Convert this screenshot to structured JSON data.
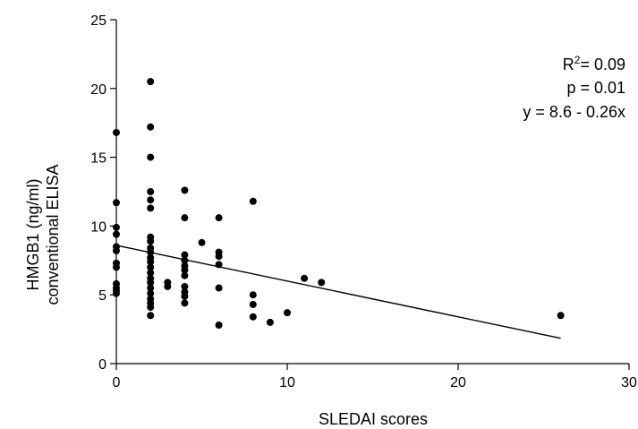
{
  "chart_data": {
    "type": "scatter",
    "title": "",
    "xlabel": "SLEDAI scores",
    "ylabel_lines": [
      "HMGB1 (ng/ml)",
      "conventional ELISA"
    ],
    "xlim": [
      0,
      30
    ],
    "ylim": [
      0,
      25
    ],
    "x_ticks": [
      0,
      10,
      20,
      30
    ],
    "y_ticks": [
      0,
      5,
      10,
      15,
      20,
      25
    ],
    "x_tick_labels": [
      "0",
      "10",
      "20",
      "30"
    ],
    "y_tick_labels": [
      "0",
      "5",
      "10",
      "15",
      "20",
      "25"
    ],
    "grid": false,
    "legend": "none",
    "point_color": "#000000",
    "regression_line": {
      "intercept": 8.6,
      "slope": -0.26,
      "x_range": [
        0,
        26
      ]
    },
    "annotations": {
      "r2_prefix": "R",
      "r2_exponent": "2",
      "r2_value": "= 0.09",
      "p": "p = 0.01",
      "equation": "y = 8.6 - 0.26x"
    },
    "points": [
      {
        "x": 0,
        "y": 16.8
      },
      {
        "x": 0,
        "y": 11.7
      },
      {
        "x": 0,
        "y": 9.9
      },
      {
        "x": 0,
        "y": 9.4
      },
      {
        "x": 0,
        "y": 8.5
      },
      {
        "x": 0,
        "y": 8.2
      },
      {
        "x": 0,
        "y": 7.3
      },
      {
        "x": 0,
        "y": 7.0
      },
      {
        "x": 0,
        "y": 5.8
      },
      {
        "x": 0,
        "y": 5.5
      },
      {
        "x": 0,
        "y": 5.3
      },
      {
        "x": 0,
        "y": 5.1
      },
      {
        "x": 2,
        "y": 20.5
      },
      {
        "x": 2,
        "y": 17.2
      },
      {
        "x": 2,
        "y": 15.0
      },
      {
        "x": 2,
        "y": 12.5
      },
      {
        "x": 2,
        "y": 11.9
      },
      {
        "x": 2,
        "y": 11.3
      },
      {
        "x": 2,
        "y": 9.2
      },
      {
        "x": 2,
        "y": 8.9
      },
      {
        "x": 2,
        "y": 8.4
      },
      {
        "x": 2,
        "y": 8.1
      },
      {
        "x": 2,
        "y": 7.7
      },
      {
        "x": 2,
        "y": 7.4
      },
      {
        "x": 2,
        "y": 7.0
      },
      {
        "x": 2,
        "y": 6.6
      },
      {
        "x": 2,
        "y": 6.2
      },
      {
        "x": 2,
        "y": 5.9
      },
      {
        "x": 2,
        "y": 5.5
      },
      {
        "x": 2,
        "y": 5.1
      },
      {
        "x": 2,
        "y": 4.7
      },
      {
        "x": 2,
        "y": 4.4
      },
      {
        "x": 2,
        "y": 4.1
      },
      {
        "x": 2,
        "y": 3.5
      },
      {
        "x": 3,
        "y": 5.9
      },
      {
        "x": 3,
        "y": 5.6
      },
      {
        "x": 4,
        "y": 12.6
      },
      {
        "x": 4,
        "y": 10.6
      },
      {
        "x": 4,
        "y": 7.9
      },
      {
        "x": 4,
        "y": 7.5
      },
      {
        "x": 4,
        "y": 7.1
      },
      {
        "x": 4,
        "y": 6.8
      },
      {
        "x": 4,
        "y": 6.4
      },
      {
        "x": 4,
        "y": 5.6
      },
      {
        "x": 4,
        "y": 5.2
      },
      {
        "x": 4,
        "y": 4.9
      },
      {
        "x": 4,
        "y": 4.4
      },
      {
        "x": 5,
        "y": 8.8
      },
      {
        "x": 6,
        "y": 10.6
      },
      {
        "x": 6,
        "y": 8.1
      },
      {
        "x": 6,
        "y": 7.8
      },
      {
        "x": 6,
        "y": 7.2
      },
      {
        "x": 6,
        "y": 5.5
      },
      {
        "x": 6,
        "y": 2.8
      },
      {
        "x": 8,
        "y": 11.8
      },
      {
        "x": 8,
        "y": 5.0
      },
      {
        "x": 8,
        "y": 4.3
      },
      {
        "x": 8,
        "y": 3.4
      },
      {
        "x": 9,
        "y": 3.0
      },
      {
        "x": 10,
        "y": 3.7
      },
      {
        "x": 11,
        "y": 6.2
      },
      {
        "x": 12,
        "y": 5.9
      },
      {
        "x": 26,
        "y": 3.5
      }
    ]
  }
}
